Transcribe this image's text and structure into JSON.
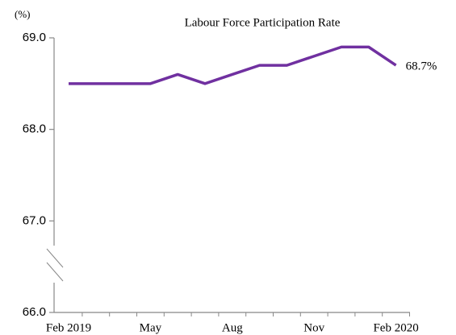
{
  "chart_data": {
    "type": "line",
    "title": "Labour Force Participation  Rate",
    "y_label": "(%)",
    "categories": [
      "Feb 2019",
      null,
      null,
      "May",
      null,
      null,
      "Aug",
      null,
      null,
      "Nov",
      null,
      null,
      "Feb 2020"
    ],
    "series": [
      {
        "name": "Labour Force Participation Rate",
        "color": "#7030a0",
        "values": [
          68.5,
          68.5,
          68.5,
          68.5,
          68.6,
          68.5,
          68.6,
          68.7,
          68.7,
          68.8,
          68.9,
          68.9,
          68.7
        ],
        "value_labels": [
          null,
          null,
          null,
          null,
          null,
          null,
          null,
          null,
          null,
          null,
          null,
          null,
          "68.7%"
        ]
      }
    ],
    "ylim": [
      66,
      69
    ],
    "yticks": [
      {
        "value": 66,
        "label": "66.0"
      },
      {
        "value": 67,
        "label": "67.0"
      },
      {
        "value": 68,
        "label": "68.0"
      },
      {
        "value": 69,
        "label": "69.0"
      }
    ],
    "grid": false
  }
}
